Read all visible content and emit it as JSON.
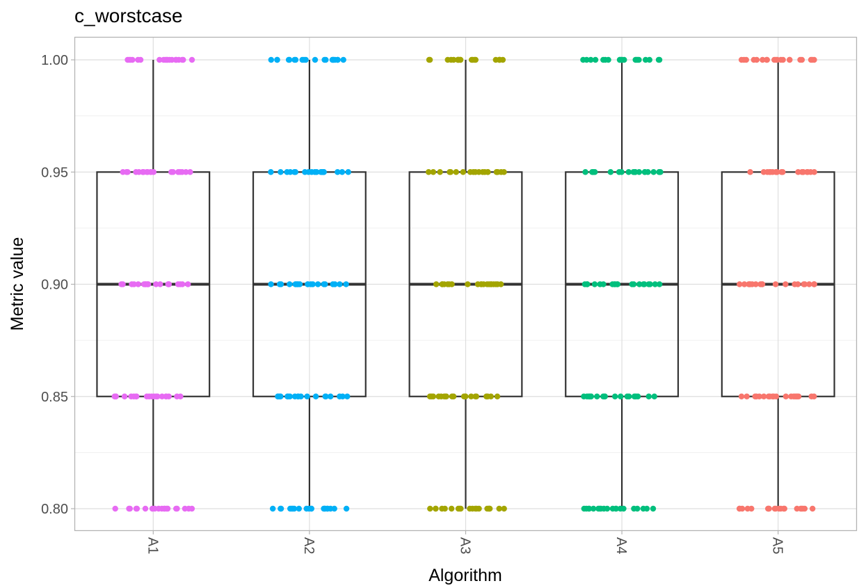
{
  "chart_data": {
    "type": "boxplot",
    "title": "c_worstcase",
    "xlabel": "Algorithm",
    "ylabel": "Metric value",
    "ylim": [
      0.79,
      1.01
    ],
    "yticks": [
      "0.80",
      "0.85",
      "0.90",
      "0.95",
      "1.00"
    ],
    "categories": [
      "A1",
      "A2",
      "A3",
      "A4",
      "A5"
    ],
    "grid": true,
    "legend": "none",
    "colors": [
      "#E76BF3",
      "#00B0F6",
      "#A3A500",
      "#00BF7D",
      "#F8766D"
    ],
    "boxes": [
      {
        "name": "A1",
        "min": 0.8,
        "q1": 0.85,
        "median": 0.9,
        "q3": 0.95,
        "max": 1.0
      },
      {
        "name": "A2",
        "min": 0.8,
        "q1": 0.85,
        "median": 0.9,
        "q3": 0.95,
        "max": 1.0
      },
      {
        "name": "A3",
        "min": 0.8,
        "q1": 0.85,
        "median": 0.9,
        "q3": 0.95,
        "max": 1.0
      },
      {
        "name": "A4",
        "min": 0.8,
        "q1": 0.85,
        "median": 0.9,
        "q3": 0.95,
        "max": 1.0
      },
      {
        "name": "A5",
        "min": 0.8,
        "q1": 0.85,
        "median": 0.9,
        "q3": 0.95,
        "max": 1.0
      }
    ],
    "points": [
      {
        "name": "A1",
        "y": [
          1.0,
          1.0,
          1.0,
          1.0,
          1.0,
          1.0,
          1.0,
          1.0,
          1.0,
          1.0,
          1.0,
          1.0,
          1.0,
          1.0,
          1.0,
          1.0,
          1.0,
          1.0,
          1.0,
          0.95,
          0.95,
          0.95,
          0.95,
          0.95,
          0.95,
          0.95,
          0.95,
          0.95,
          0.95,
          0.95,
          0.95,
          0.95,
          0.95,
          0.95,
          0.95,
          0.95,
          0.95,
          0.95,
          0.95,
          0.9,
          0.9,
          0.9,
          0.9,
          0.9,
          0.9,
          0.9,
          0.9,
          0.9,
          0.9,
          0.9,
          0.9,
          0.9,
          0.9,
          0.9,
          0.9,
          0.9,
          0.9,
          0.9,
          0.9,
          0.85,
          0.85,
          0.85,
          0.85,
          0.85,
          0.85,
          0.85,
          0.85,
          0.85,
          0.85,
          0.85,
          0.85,
          0.85,
          0.85,
          0.85,
          0.85,
          0.85,
          0.85,
          0.85,
          0.85,
          0.8,
          0.8,
          0.8,
          0.8,
          0.8,
          0.8,
          0.8,
          0.8,
          0.8,
          0.8,
          0.8,
          0.8,
          0.8,
          0.8,
          0.8,
          0.8,
          0.8,
          0.8,
          0.8,
          0.8
        ]
      },
      {
        "name": "A2",
        "y": [
          1.0,
          1.0,
          1.0,
          1.0,
          1.0,
          1.0,
          1.0,
          1.0,
          1.0,
          1.0,
          1.0,
          1.0,
          1.0,
          1.0,
          1.0,
          1.0,
          1.0,
          1.0,
          1.0,
          1.0,
          0.95,
          0.95,
          0.95,
          0.95,
          0.95,
          0.95,
          0.95,
          0.95,
          0.95,
          0.95,
          0.95,
          0.95,
          0.95,
          0.95,
          0.95,
          0.95,
          0.95,
          0.95,
          0.95,
          0.95,
          0.9,
          0.9,
          0.9,
          0.9,
          0.9,
          0.9,
          0.9,
          0.9,
          0.9,
          0.9,
          0.9,
          0.9,
          0.9,
          0.9,
          0.9,
          0.9,
          0.9,
          0.9,
          0.9,
          0.9,
          0.85,
          0.85,
          0.85,
          0.85,
          0.85,
          0.85,
          0.85,
          0.85,
          0.85,
          0.85,
          0.85,
          0.85,
          0.85,
          0.85,
          0.85,
          0.85,
          0.85,
          0.85,
          0.85,
          0.85,
          0.8,
          0.8,
          0.8,
          0.8,
          0.8,
          0.8,
          0.8,
          0.8,
          0.8,
          0.8,
          0.8,
          0.8,
          0.8,
          0.8,
          0.8,
          0.8,
          0.8,
          0.8,
          0.8,
          0.8
        ]
      },
      {
        "name": "A3",
        "y": [
          1.0,
          1.0,
          1.0,
          1.0,
          1.0,
          1.0,
          1.0,
          1.0,
          1.0,
          1.0,
          1.0,
          1.0,
          1.0,
          1.0,
          1.0,
          1.0,
          1.0,
          1.0,
          1.0,
          1.0,
          0.95,
          0.95,
          0.95,
          0.95,
          0.95,
          0.95,
          0.95,
          0.95,
          0.95,
          0.95,
          0.95,
          0.95,
          0.95,
          0.95,
          0.95,
          0.95,
          0.95,
          0.95,
          0.95,
          0.95,
          0.9,
          0.9,
          0.9,
          0.9,
          0.9,
          0.9,
          0.9,
          0.9,
          0.9,
          0.9,
          0.9,
          0.9,
          0.9,
          0.9,
          0.9,
          0.9,
          0.9,
          0.9,
          0.9,
          0.9,
          0.85,
          0.85,
          0.85,
          0.85,
          0.85,
          0.85,
          0.85,
          0.85,
          0.85,
          0.85,
          0.85,
          0.85,
          0.85,
          0.85,
          0.85,
          0.85,
          0.85,
          0.85,
          0.85,
          0.85,
          0.8,
          0.8,
          0.8,
          0.8,
          0.8,
          0.8,
          0.8,
          0.8,
          0.8,
          0.8,
          0.8,
          0.8,
          0.8,
          0.8,
          0.8,
          0.8,
          0.8,
          0.8,
          0.8,
          0.8
        ]
      },
      {
        "name": "A4",
        "y": [
          1.0,
          1.0,
          1.0,
          1.0,
          1.0,
          1.0,
          1.0,
          1.0,
          1.0,
          1.0,
          1.0,
          1.0,
          1.0,
          1.0,
          1.0,
          1.0,
          1.0,
          1.0,
          1.0,
          1.0,
          0.95,
          0.95,
          0.95,
          0.95,
          0.95,
          0.95,
          0.95,
          0.95,
          0.95,
          0.95,
          0.95,
          0.95,
          0.95,
          0.95,
          0.95,
          0.95,
          0.95,
          0.95,
          0.95,
          0.95,
          0.9,
          0.9,
          0.9,
          0.9,
          0.9,
          0.9,
          0.9,
          0.9,
          0.9,
          0.9,
          0.9,
          0.9,
          0.9,
          0.9,
          0.9,
          0.9,
          0.9,
          0.9,
          0.9,
          0.9,
          0.85,
          0.85,
          0.85,
          0.85,
          0.85,
          0.85,
          0.85,
          0.85,
          0.85,
          0.85,
          0.85,
          0.85,
          0.85,
          0.85,
          0.85,
          0.85,
          0.85,
          0.85,
          0.85,
          0.85,
          0.8,
          0.8,
          0.8,
          0.8,
          0.8,
          0.8,
          0.8,
          0.8,
          0.8,
          0.8,
          0.8,
          0.8,
          0.8,
          0.8,
          0.8,
          0.8,
          0.8,
          0.8,
          0.8,
          0.8
        ]
      },
      {
        "name": "A5",
        "y": [
          1.0,
          1.0,
          1.0,
          1.0,
          1.0,
          1.0,
          1.0,
          1.0,
          1.0,
          1.0,
          1.0,
          1.0,
          1.0,
          1.0,
          1.0,
          1.0,
          1.0,
          1.0,
          1.0,
          1.0,
          0.95,
          0.95,
          0.95,
          0.95,
          0.95,
          0.95,
          0.95,
          0.95,
          0.95,
          0.95,
          0.95,
          0.95,
          0.95,
          0.95,
          0.95,
          0.95,
          0.95,
          0.95,
          0.95,
          0.95,
          0.9,
          0.9,
          0.9,
          0.9,
          0.9,
          0.9,
          0.9,
          0.9,
          0.9,
          0.9,
          0.9,
          0.9,
          0.9,
          0.9,
          0.9,
          0.9,
          0.9,
          0.9,
          0.9,
          0.9,
          0.85,
          0.85,
          0.85,
          0.85,
          0.85,
          0.85,
          0.85,
          0.85,
          0.85,
          0.85,
          0.85,
          0.85,
          0.85,
          0.85,
          0.85,
          0.85,
          0.85,
          0.85,
          0.85,
          0.85,
          0.8,
          0.8,
          0.8,
          0.8,
          0.8,
          0.8,
          0.8,
          0.8,
          0.8,
          0.8,
          0.8,
          0.8,
          0.8,
          0.8,
          0.8,
          0.8,
          0.8,
          0.8,
          0.8,
          0.8
        ]
      }
    ]
  }
}
